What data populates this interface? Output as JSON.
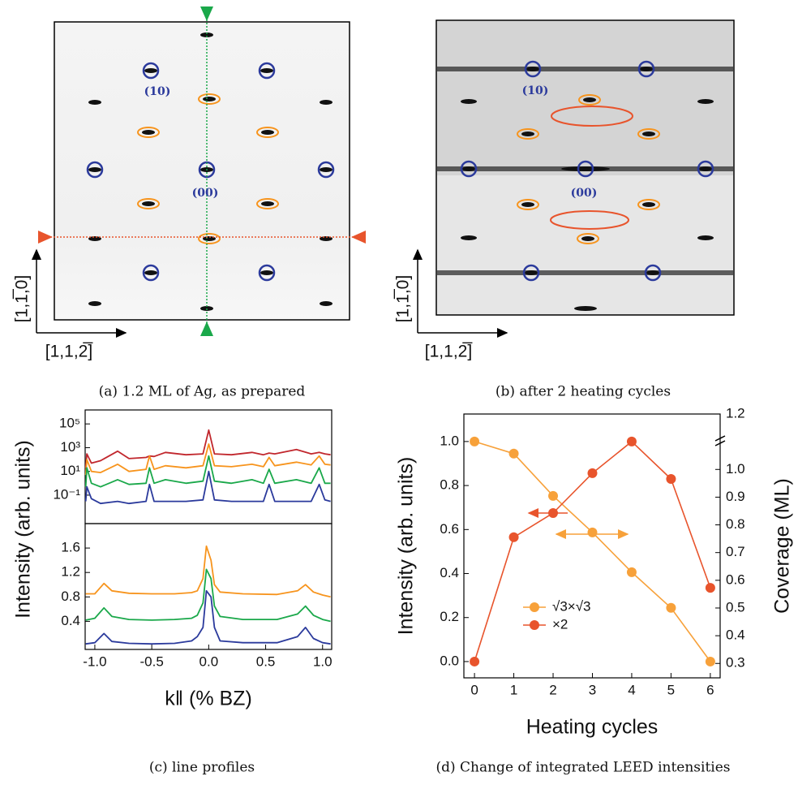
{
  "panels": {
    "a": {
      "caption": "(a) 1.2 ML of Ag, as prepared",
      "spot_10": "(10)",
      "spot_00": "(00)",
      "dir_vertical": "[1,1̅,0]",
      "dir_horizontal": "[1,1,2̅]"
    },
    "b": {
      "caption": "(b) after 2 heating cycles",
      "spot_10": "(10)",
      "spot_00": "(00)",
      "dir_vertical": "[1,1̅,0]",
      "dir_horizontal": "[1,1,2̅]"
    },
    "c": {
      "caption": "(c) line profiles"
    },
    "d": {
      "caption": "(d) Change of integrated LEED intensities"
    }
  },
  "chart_data": [
    {
      "type": "line",
      "log_scale": true,
      "x": [
        -1.08,
        -1.07,
        -1.03,
        -0.95,
        -0.8,
        -0.7,
        -0.55,
        -0.52,
        -0.48,
        -0.38,
        -0.2,
        -0.05,
        0,
        0.05,
        0.2,
        0.38,
        0.48,
        0.53,
        0.58,
        0.77,
        0.9,
        0.97,
        1.02,
        1.07
      ],
      "xlim": [
        -1.085,
        1.08
      ],
      "ylim": [
        0.0004,
        1500000
      ],
      "yticks": [
        {
          "value": 0.1,
          "label": "10⁻¹"
        },
        {
          "value": 10,
          "label": "10¹"
        },
        {
          "value": 1000,
          "label": "10³"
        },
        {
          "value": 100000,
          "label": "10⁵"
        }
      ],
      "series": [
        {
          "color": "#c1272d",
          "values": [
            20,
            300,
            50,
            80,
            500,
            120,
            150,
            200,
            180,
            400,
            250,
            300,
            30000,
            300,
            250,
            400,
            250,
            350,
            300,
            700,
            300,
            400,
            300,
            250
          ]
        },
        {
          "color": "#f7941d",
          "values": [
            5,
            100,
            10,
            8,
            40,
            10,
            15,
            200,
            15,
            30,
            20,
            30,
            2000,
            30,
            25,
            40,
            25,
            150,
            30,
            60,
            35,
            200,
            40,
            35
          ]
        },
        {
          "color": "#1aa84a",
          "values": [
            0.5,
            20,
            1,
            0.5,
            2,
            0.8,
            1,
            20,
            1,
            2,
            1,
            1.5,
            200,
            1.5,
            1,
            2,
            1,
            15,
            1,
            2,
            1,
            20,
            1,
            1
          ]
        },
        {
          "color": "#2b3a9c",
          "values": [
            0.03,
            0.5,
            0.05,
            0.02,
            0.03,
            0.02,
            0.03,
            0.8,
            0.03,
            0.03,
            0.03,
            0.04,
            10,
            0.04,
            0.03,
            0.03,
            0.03,
            0.8,
            0.03,
            0.03,
            0.03,
            0.8,
            0.04,
            0.03
          ]
        }
      ]
    },
    {
      "type": "line",
      "x": [
        -1.08,
        -1.0,
        -0.92,
        -0.85,
        -0.7,
        -0.5,
        -0.3,
        -0.15,
        -0.1,
        -0.05,
        -0.02,
        0.02,
        0.05,
        0.1,
        0.3,
        0.6,
        0.78,
        0.85,
        0.92,
        1.0,
        1.07
      ],
      "xlim": [
        -1.085,
        1.08
      ],
      "xticks": [
        {
          "value": -1,
          "label": "-1.0"
        },
        -0.5,
        {
          "value": 0,
          "label": "0.0"
        },
        0.5,
        {
          "value": 1,
          "label": "1.0"
        }
      ],
      "ylim": [
        -0.06,
        2.0
      ],
      "yticks": [
        0.4,
        0.8,
        1.2,
        1.6
      ],
      "x_label": "k‖ (% BZ)",
      "y_label": "Intensity (arb. units)",
      "series": [
        {
          "color": "#f7941d",
          "values": [
            0.85,
            0.85,
            1.02,
            0.9,
            0.86,
            0.85,
            0.85,
            0.87,
            0.9,
            1.1,
            1.63,
            1.4,
            1.0,
            0.88,
            0.85,
            0.84,
            0.9,
            1.0,
            0.88,
            0.83,
            0.8
          ]
        },
        {
          "color": "#1aa84a",
          "values": [
            0.42,
            0.45,
            0.62,
            0.48,
            0.43,
            0.42,
            0.43,
            0.45,
            0.5,
            0.7,
            1.25,
            1.1,
            0.65,
            0.48,
            0.43,
            0.43,
            0.52,
            0.65,
            0.5,
            0.43,
            0.4
          ]
        },
        {
          "color": "#2b3a9c",
          "values": [
            0.03,
            0.05,
            0.2,
            0.07,
            0.04,
            0.03,
            0.04,
            0.08,
            0.15,
            0.3,
            0.9,
            0.8,
            0.3,
            0.08,
            0.05,
            0.05,
            0.15,
            0.3,
            0.12,
            0.05,
            0.03
          ]
        }
      ]
    },
    {
      "type": "line",
      "markers": true,
      "x": [
        0,
        1,
        2,
        3,
        4,
        5,
        6
      ],
      "xlim": [
        -0.27,
        6.25
      ],
      "xticks": [
        0,
        1,
        2,
        3,
        4,
        5,
        6
      ],
      "ylim": [
        -0.074,
        1.125
      ],
      "yticks": [
        {
          "value": 0,
          "label": "0.0"
        },
        0.2,
        0.4,
        0.6,
        0.8,
        {
          "value": 1,
          "label": "1.0"
        }
      ],
      "y2lim": [
        0.248,
        1.2
      ],
      "y2ticks": [
        0.3,
        0.4,
        0.5,
        0.6,
        0.7,
        0.8,
        0.9,
        {
          "value": 1,
          "label": "1.0"
        },
        1.2
      ],
      "x_label": "Heating cycles",
      "y_label": "Intensity (arb. units)",
      "y2_label": "Coverage (ML)",
      "series": [
        {
          "name": "√3×√3",
          "color": "#f7a13a",
          "values": [
            1.0,
            0.945,
            0.753,
            0.587,
            0.406,
            0.244,
            0.0
          ]
        },
        {
          "name": "×2",
          "color": "#e8542c",
          "values": [
            0.0,
            0.565,
            0.675,
            0.856,
            1.0,
            0.83,
            0.335
          ]
        }
      ]
    }
  ]
}
